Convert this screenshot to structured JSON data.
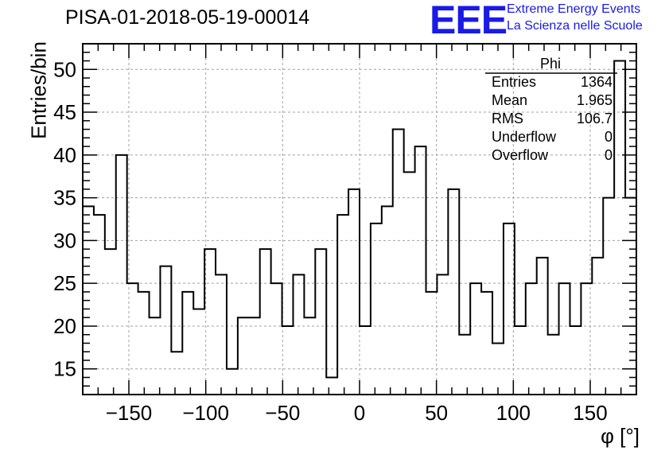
{
  "title": "PISA-01-2018-05-19-00014",
  "logo": {
    "text": "EEE",
    "line1": "Extreme Energy Events",
    "line2": "La Scienza nelle Scuole",
    "color": "#1a1ae6"
  },
  "stats": {
    "title": "Phi",
    "rows": [
      {
        "label": "Entries",
        "value": "1364"
      },
      {
        "label": "Mean",
        "value": "1.965"
      },
      {
        "label": "RMS",
        "value": "106.7"
      },
      {
        "label": "Underflow",
        "value": "0"
      },
      {
        "label": "Overflow",
        "value": "0"
      }
    ]
  },
  "chart_data": {
    "type": "bar",
    "title": "PISA-01-2018-05-19-00014",
    "xlabel": "φ [°]",
    "ylabel": "Entries/bin",
    "xlim": [
      -180,
      180
    ],
    "ylim": [
      12,
      53
    ],
    "bin_width": 7.2,
    "bin_edges_start": -180,
    "values": [
      34,
      33,
      29,
      40,
      25,
      24,
      21,
      27,
      17,
      24,
      22,
      29,
      26,
      15,
      21,
      21,
      29,
      25,
      20,
      26,
      21,
      29,
      14,
      33,
      36,
      20,
      32,
      34,
      43,
      38,
      41,
      24,
      26,
      36,
      19,
      25,
      24,
      18,
      32,
      20,
      25,
      28,
      19,
      25,
      20,
      25,
      28,
      35,
      51,
      35
    ],
    "xticks": [
      -150,
      -100,
      -50,
      0,
      50,
      100,
      150
    ],
    "xtick_labels": [
      "−150",
      "−100",
      "−50",
      "0",
      "50",
      "100",
      "150"
    ],
    "yticks": [
      15,
      20,
      25,
      30,
      35,
      40,
      45,
      50
    ],
    "ytick_labels": [
      "15",
      "20",
      "25",
      "30",
      "35",
      "40",
      "45",
      "50"
    ],
    "grid": true,
    "line_color": "#000000",
    "grid_color": "#a0a0a0"
  }
}
